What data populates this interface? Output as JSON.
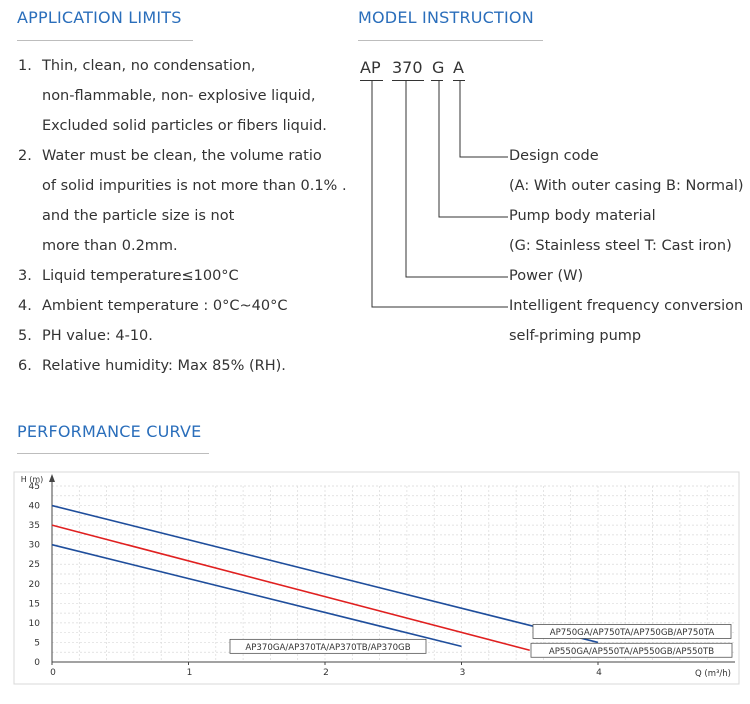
{
  "application_limits": {
    "title": "APPLICATION LIMITS",
    "items": [
      {
        "num": "1.",
        "lines": [
          "Thin, clean, no condensation,",
          "non-flammable, non- explosive liquid,",
          "Excluded solid particles or fibers liquid."
        ]
      },
      {
        "num": "2.",
        "lines": [
          "Water must be clean, the volume ratio",
          "of solid impurities is not  more than 0.1% .",
          "and the particle size is not",
          "more than 0.2mm."
        ]
      },
      {
        "num": "3.",
        "lines": [
          "Liquid temperature≤100°C"
        ]
      },
      {
        "num": "4.",
        "lines": [
          "Ambient temperature : 0°C~40°C"
        ]
      },
      {
        "num": "5.",
        "lines": [
          "PH value: 4-10."
        ]
      },
      {
        "num": "6.",
        "lines": [
          "Relative humidity: Max 85% (RH)."
        ]
      }
    ]
  },
  "model_instruction": {
    "title": "MODEL INSTRUCTION",
    "code": [
      "AP",
      "370",
      "G",
      "A"
    ],
    "labels": [
      [
        "Design code",
        "(A: With outer casing B: Normal)"
      ],
      [
        "Pump body material",
        "(G: Stainless steel T: Cast iron)"
      ],
      [
        "Power (W)"
      ],
      [
        "Intelligent frequency conversion",
        "self-priming pump"
      ]
    ]
  },
  "performance_curve": {
    "title": "PERFORMANCE CURVE"
  },
  "chart_data": {
    "type": "line",
    "xlabel": "Q (m³/h)",
    "ylabel": "H (m)",
    "xlim": [
      0,
      5
    ],
    "ylim": [
      0,
      45
    ],
    "x_ticks": [
      0,
      1,
      2,
      3,
      4
    ],
    "y_ticks": [
      0,
      5,
      10,
      15,
      20,
      25,
      30,
      35,
      40,
      45
    ],
    "grid": true,
    "series": [
      {
        "name": "AP750GA/AP750TA/AP750GB/AP750TA",
        "color": "#1f4e9c",
        "x": [
          0,
          4
        ],
        "y": [
          40,
          5
        ]
      },
      {
        "name": "AP550GA/AP550TA/AP550GB/AP550TB",
        "color": "#e02020",
        "x": [
          0,
          3.5
        ],
        "y": [
          35,
          3
        ]
      },
      {
        "name": "AP370GA/AP370TA/AP370TB/AP370GB",
        "color": "#1f4e9c",
        "x": [
          0,
          3
        ],
        "y": [
          30,
          4
        ]
      }
    ]
  }
}
